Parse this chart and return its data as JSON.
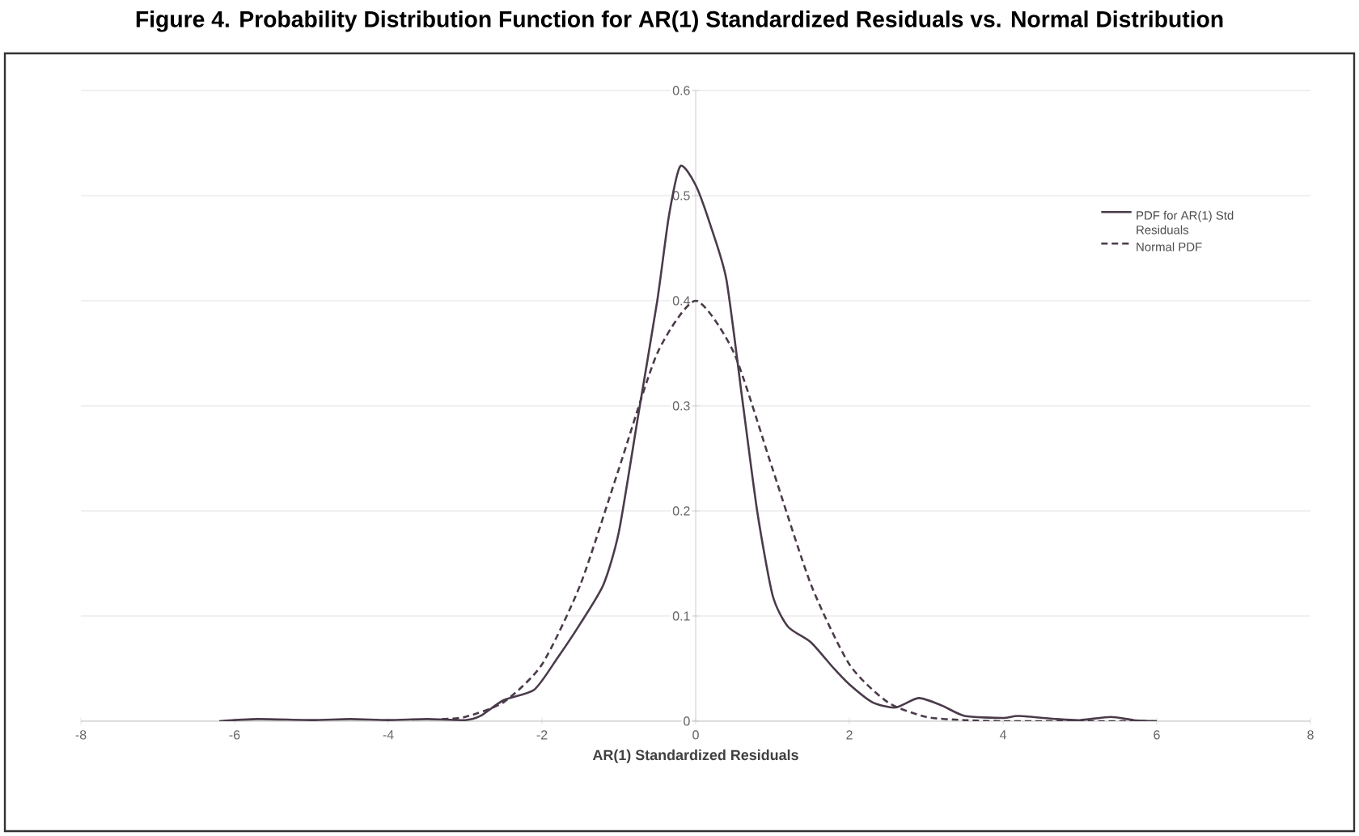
{
  "chart_data": {
    "type": "line",
    "title": "Figure 4. Probability Distribution Function for AR(1) Standardized Residuals vs. Normal Distribution",
    "xlabel": "AR(1) Standardized Residuals",
    "xlim": [
      -8,
      8
    ],
    "xticks": [
      -8,
      -6,
      -4,
      -2,
      0,
      2,
      4,
      6,
      8
    ],
    "ylim": [
      0,
      0.6
    ],
    "yticks": [
      0,
      0.1,
      0.2,
      0.3,
      0.4,
      0.5,
      0.6
    ],
    "grid": "y",
    "legend": "right",
    "series": [
      {
        "name": "PDF for AR(1) Std Residuals",
        "color": "#4a3b4a",
        "line_style": "solid",
        "x": [
          -6.2,
          -5.7,
          -5,
          -4.5,
          -4,
          -3.5,
          -3,
          -2.8,
          -2.5,
          -2.1,
          -1.8,
          -1.5,
          -1.2,
          -1.0,
          -0.75,
          -0.5,
          -0.35,
          -0.2,
          0,
          0.2,
          0.4,
          0.6,
          0.8,
          1.0,
          1.2,
          1.5,
          1.8,
          2.0,
          2.3,
          2.6,
          2.9,
          3.2,
          3.5,
          4.0,
          4.2,
          4.7,
          5.0,
          5.4,
          5.7,
          6.0
        ],
        "values": [
          0,
          0.002,
          0.001,
          0.002,
          0.001,
          0.002,
          0.001,
          0.005,
          0.02,
          0.03,
          0.06,
          0.093,
          0.13,
          0.18,
          0.29,
          0.4,
          0.48,
          0.528,
          0.51,
          0.47,
          0.42,
          0.31,
          0.2,
          0.12,
          0.09,
          0.075,
          0.05,
          0.035,
          0.018,
          0.013,
          0.022,
          0.015,
          0.005,
          0.003,
          0.005,
          0.002,
          0.001,
          0.004,
          0.001,
          0
        ]
      },
      {
        "name": "Normal PDF",
        "color": "#4a3b4a",
        "line_style": "dashed",
        "x": [
          -3.3,
          -3,
          -2.5,
          -2,
          -1.5,
          -1,
          -0.5,
          0,
          0.5,
          1,
          1.5,
          2,
          2.5,
          3,
          3.5,
          4,
          5,
          6
        ],
        "values": [
          0.002,
          0.004,
          0.018,
          0.054,
          0.13,
          0.24,
          0.35,
          0.4,
          0.35,
          0.24,
          0.13,
          0.054,
          0.018,
          0.004,
          0.001,
          0,
          0,
          0
        ]
      }
    ]
  }
}
